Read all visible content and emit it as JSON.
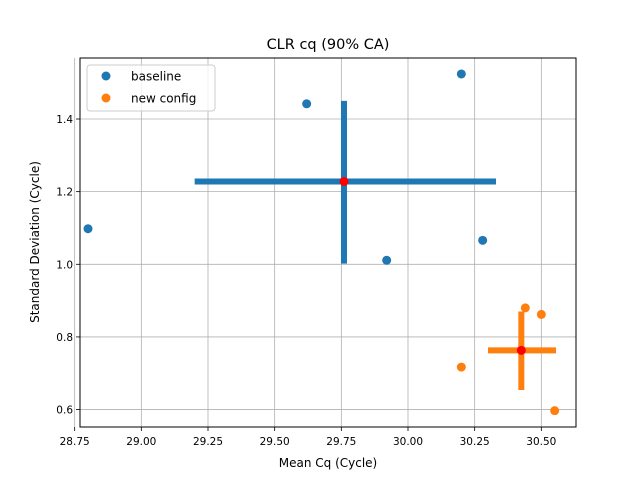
{
  "chart_data": {
    "type": "scatter",
    "title": "CLR cq (90% CA)",
    "xlabel": "Mean Cq (Cycle)",
    "ylabel": "Standard Deviation (Cycle)",
    "xlim": [
      28.77,
      30.63
    ],
    "ylim": [
      0.552,
      1.568
    ],
    "xticks": [
      28.75,
      29.0,
      29.25,
      29.5,
      29.75,
      30.0,
      30.25,
      30.5
    ],
    "xtick_labels": [
      "28.75",
      "29.00",
      "29.25",
      "29.50",
      "29.75",
      "30.00",
      "30.25",
      "30.50"
    ],
    "yticks": [
      0.6,
      0.8,
      1.0,
      1.2,
      1.4
    ],
    "ytick_labels": [
      "0.6",
      "0.8",
      "1.0",
      "1.2",
      "1.4"
    ],
    "grid": true,
    "legend_position": "top-left",
    "series": [
      {
        "name": "baseline",
        "color": "#1f77b4",
        "points": [
          {
            "x": 28.8,
            "y": 1.098
          },
          {
            "x": 29.62,
            "y": 1.442
          },
          {
            "x": 30.2,
            "y": 1.524
          },
          {
            "x": 29.92,
            "y": 1.011
          },
          {
            "x": 30.28,
            "y": 1.066
          }
        ],
        "center": {
          "x": 29.76,
          "y": 1.228
        },
        "x_interval": [
          29.2,
          30.33
        ],
        "y_interval": [
          1.002,
          1.45
        ]
      },
      {
        "name": "new config",
        "color": "#ff7f0e",
        "points": [
          {
            "x": 30.2,
            "y": 0.717
          },
          {
            "x": 30.44,
            "y": 0.88
          },
          {
            "x": 30.5,
            "y": 0.862
          },
          {
            "x": 30.55,
            "y": 0.597
          }
        ],
        "center": {
          "x": 30.425,
          "y": 0.763
        },
        "x_interval": [
          30.3,
          30.555
        ],
        "y_interval": [
          0.654,
          0.87
        ]
      }
    ],
    "center_marker_color": "#ff0000"
  }
}
